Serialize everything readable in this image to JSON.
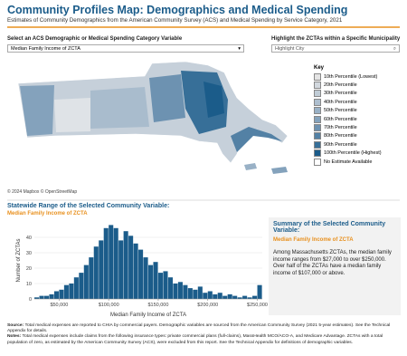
{
  "header": {
    "title": "Community Profiles Map: Demographics and Medical Spending",
    "subtitle": "Estimates of Community Demographics from the American Community Survey (ACS) and Medical Spending by Service Category, 2021"
  },
  "controls": {
    "variable_label": "Select an ACS Demographic or Medical Spending Category Variable",
    "variable_value": "Median Family Income of ZCTA",
    "city_label": "Highlight the ZCTAs within a Specific Municipality",
    "city_placeholder": "Highlight City"
  },
  "map": {
    "legend_title": "Key",
    "legend": [
      {
        "label": "10th Percentile (Lowest)",
        "color": "#e4e4e4"
      },
      {
        "label": "20th Percentile",
        "color": "#d2d8de"
      },
      {
        "label": "30th Percentile",
        "color": "#c0ccd6"
      },
      {
        "label": "40th Percentile",
        "color": "#aebfcf"
      },
      {
        "label": "50th Percentile",
        "color": "#99b1c6"
      },
      {
        "label": "60th Percentile",
        "color": "#84a2bc"
      },
      {
        "label": "70th Percentile",
        "color": "#6d92b1"
      },
      {
        "label": "80th Percentile",
        "color": "#5381a5"
      },
      {
        "label": "90th Percentile",
        "color": "#376f98"
      },
      {
        "label": "100th Percentile (Highest)",
        "color": "#1b5c8a"
      },
      {
        "label": "No Estimate Available",
        "color": "#ffffff"
      }
    ],
    "attribution": "© 2024 Mapbox © OpenStreetMap"
  },
  "range": {
    "heading": "Statewide Range of the Selected Community Variable:",
    "variable": "Median Family Income of ZCTA"
  },
  "chart_data": {
    "type": "histogram",
    "color": "#1b5c8a",
    "x_label": "Median Family Income of ZCTA",
    "y_label": "Number of ZCTAs",
    "bins": [
      25000,
      30000,
      35000,
      40000,
      45000,
      50000,
      55000,
      60000,
      65000,
      70000,
      75000,
      80000,
      85000,
      90000,
      95000,
      100000,
      105000,
      110000,
      115000,
      120000,
      125000,
      130000,
      135000,
      140000,
      145000,
      150000,
      155000,
      160000,
      165000,
      170000,
      175000,
      180000,
      185000,
      190000,
      195000,
      200000,
      205000,
      210000,
      215000,
      220000,
      225000,
      230000,
      235000,
      240000,
      245000,
      250000,
      255000
    ],
    "values": [
      1,
      2,
      2,
      3,
      5,
      6,
      9,
      10,
      14,
      17,
      22,
      27,
      34,
      38,
      46,
      48,
      46,
      38,
      44,
      41,
      36,
      32,
      27,
      22,
      24,
      17,
      18,
      14,
      10,
      11,
      9,
      7,
      6,
      8,
      4,
      5,
      3,
      4,
      2,
      3,
      2,
      1,
      2,
      1,
      2,
      9
    ],
    "xlim": [
      25000,
      255000
    ],
    "xticks": [
      {
        "value": 50000,
        "label": "$50,000"
      },
      {
        "value": 100000,
        "label": "$100,000"
      },
      {
        "value": 150000,
        "label": "$150,000"
      },
      {
        "value": 200000,
        "label": "$200,000"
      },
      {
        "value": 250000,
        "label": "$250,000"
      }
    ],
    "ylim": [
      0,
      50
    ],
    "yticks": [
      0,
      10,
      20,
      30,
      40
    ],
    "grid": true
  },
  "summary": {
    "heading": "Summary of the Selected Community Variable:",
    "variable": "Median Family Income of ZCTA",
    "text": "Among Massachusetts ZCTAs, the median family income ranges from $27,000 to over $250,000. Over half of the ZCTAs have a median family income of $107,000 or above."
  },
  "footer": {
    "source_label": "Source:",
    "source_text": "Total medical expenses are reported to CHIA by commercial payers. Demographic variables are sourced from the American Community Survey (2021 5-year estimates). See the Technical Appendix for details.",
    "notes_label": "Notes:",
    "notes_text": "Total medical expenses include claims from the following insurance types: private commercial plans (full-claims), MassHealth MCO/ACO-A, and Medicare Advantage. ZCTAs with a total population of zero, as estimated by the American Community Survey (ACS), were excluded from this report. See the Technical Appendix for definitions of demographic variables."
  }
}
